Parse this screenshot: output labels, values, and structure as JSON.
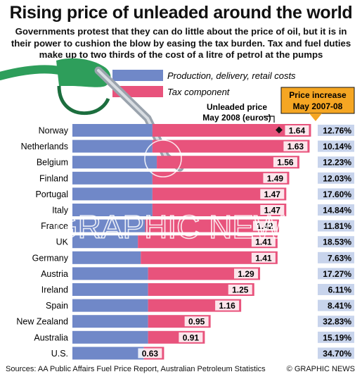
{
  "title": "Rising price of unleaded around the world",
  "subtitle": "Governments protest that they can do little about the price of oil, but it is in their power to cushion the blow by easing the tax burden. Tax and fuel duties make up to two thirds of the cost of a litre of petrol at the pumps",
  "legend": {
    "production": "Production, delivery, retail costs",
    "tax": "Tax component"
  },
  "price_header": [
    "Unleaded price",
    "May 2008 (euros)"
  ],
  "increase_header": [
    "Price increase",
    "May 2007-08"
  ],
  "source": "Sources: AA Public Affairs Fuel Price Report, Australian Petroleum Statistics",
  "credit": "© GRAPHIC NEWS",
  "watermark": "GRAPHIC NEWS",
  "colors": {
    "production": "#7088c8",
    "tax": "#e8537c",
    "header_box": "#f5a623",
    "pct_box": "#c8d4ec",
    "label_box": "#ffffff",
    "nozzle": "#2e9e5b"
  },
  "chart_data": {
    "type": "bar",
    "stacked": true,
    "orientation": "horizontal",
    "categories": [
      "Norway",
      "Netherlands",
      "Belgium",
      "Finland",
      "Portugal",
      "Italy",
      "France",
      "UK",
      "Germany",
      "Austria",
      "Ireland",
      "Spain",
      "New Zealand",
      "Australia",
      "U.S."
    ],
    "totals": [
      1.64,
      1.63,
      1.56,
      1.49,
      1.47,
      1.47,
      1.42,
      1.41,
      1.41,
      1.29,
      1.25,
      1.16,
      0.95,
      0.91,
      0.63
    ],
    "total_labels": [
      "1.64",
      "1.63",
      "1.56",
      "1.49",
      "1.47",
      "1.47",
      "1.42",
      "1.41",
      "1.41",
      "1.29",
      "1.25",
      "1.16",
      "0.95",
      "0.91",
      "0.63"
    ],
    "series": [
      {
        "name": "Production, delivery, retail costs",
        "values": [
          0.55,
          0.55,
          0.58,
          0.55,
          0.55,
          0.55,
          0.5,
          0.45,
          0.47,
          0.52,
          0.52,
          0.52,
          0.52,
          0.52,
          0.49
        ]
      },
      {
        "name": "Tax component",
        "values": [
          1.09,
          1.08,
          0.98,
          0.94,
          0.92,
          0.92,
          0.92,
          0.96,
          0.94,
          0.77,
          0.73,
          0.64,
          0.43,
          0.39,
          0.14
        ]
      }
    ],
    "increase_pct": [
      "12.76%",
      "10.14%",
      "12.23%",
      "12.03%",
      "17.60%",
      "14.84%",
      "11.81%",
      "18.53%",
      "7.63%",
      "17.27%",
      "6.11%",
      "8.41%",
      "32.83%",
      "15.19%",
      "34.70%"
    ],
    "highlight_index": 0,
    "xlim": [
      0,
      1.7
    ]
  }
}
